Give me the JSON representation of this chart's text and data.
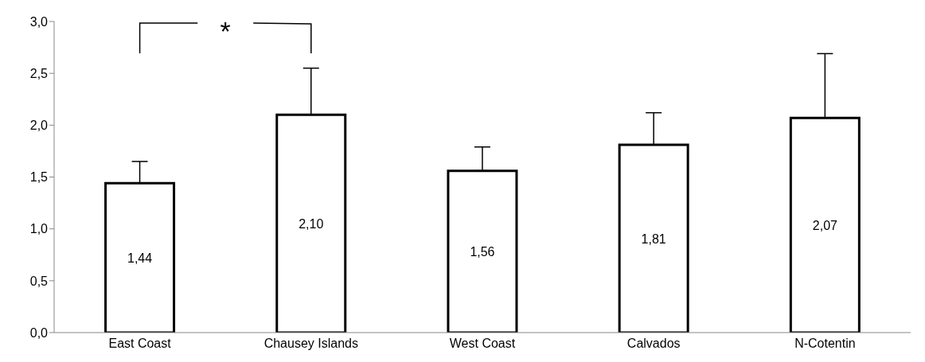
{
  "chart_data": {
    "type": "bar",
    "categories": [
      "East Coast",
      "Chausey Islands",
      "West Coast",
      "Calvados",
      "N-Cotentin"
    ],
    "values": [
      1.44,
      2.1,
      1.56,
      1.81,
      2.07
    ],
    "value_labels": [
      "1,44",
      "2,10",
      "1,56",
      "1,81",
      "2,07"
    ],
    "errors": [
      [
        1.44,
        1.65
      ],
      [
        2.1,
        2.55
      ],
      [
        1.56,
        1.79
      ],
      [
        1.81,
        2.12
      ],
      [
        2.07,
        2.69
      ]
    ],
    "color": "#ffffff",
    "ylim": [
      0,
      3
    ],
    "yticks": [
      {
        "value": 0,
        "label": "0,0"
      },
      {
        "value": 0.5,
        "label": "0,5"
      },
      {
        "value": 1,
        "label": "1,0"
      },
      {
        "value": 1.5,
        "label": "1,5"
      },
      {
        "value": 2,
        "label": "2,0"
      },
      {
        "value": 2.5,
        "label": "2,5"
      },
      {
        "value": 3,
        "label": "3,0"
      }
    ],
    "grid": false,
    "legend": false,
    "annotations": [
      "*"
    ]
  }
}
